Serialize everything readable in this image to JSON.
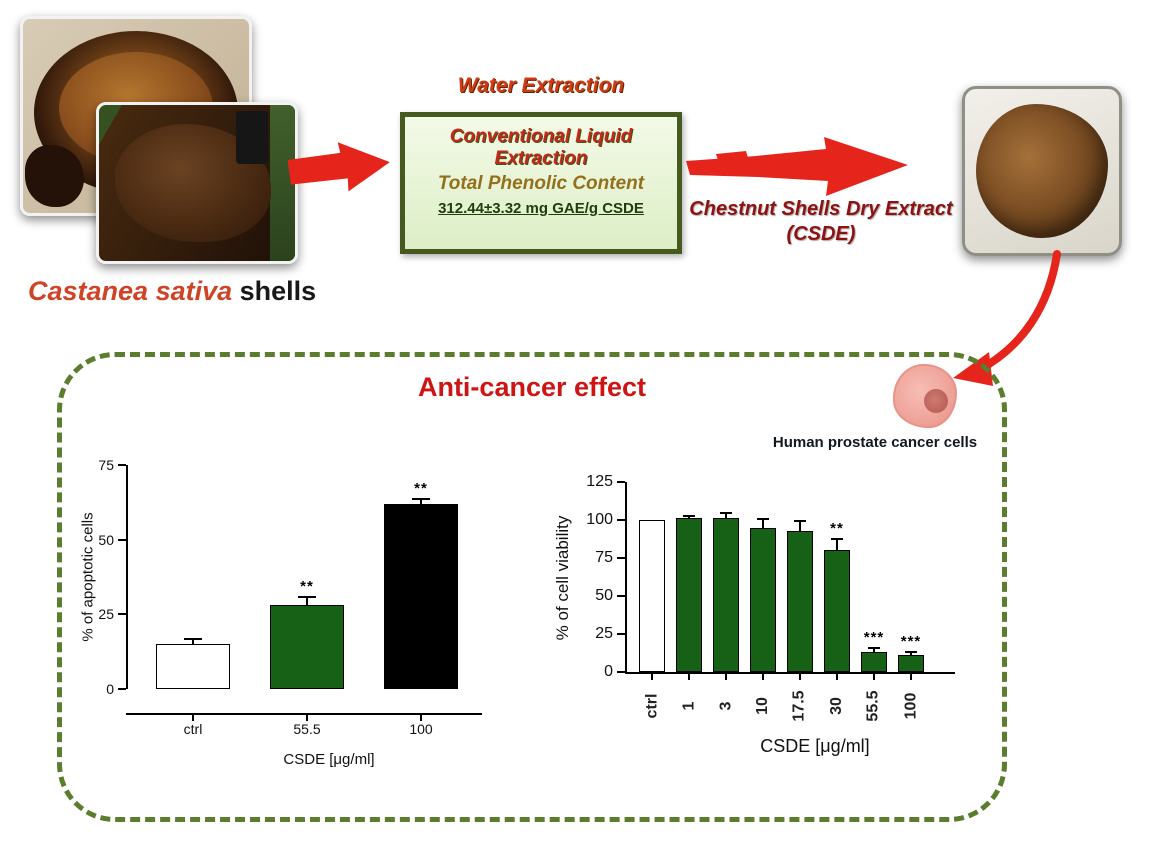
{
  "flow": {
    "species_name": "Castanea sativa",
    "species_suffix": " shells",
    "water_extraction_label": "Water Extraction",
    "extraction_box": {
      "title": "Conventional Liquid Extraction",
      "subtitle": "Total Phenolic Content",
      "value": "312.44±3.32 mg GAE/g CSDE"
    },
    "extract_label": "Chestnut Shells Dry Extract",
    "extract_abbrev": "(CSDE)"
  },
  "panel": {
    "title": "Anti-cancer effect",
    "cells_label": "Human prostate cancer cells"
  },
  "colors": {
    "accent_red": "#e5251b",
    "dark_red": "#8f1111",
    "panel_green": "#5b7d2e",
    "box_green": "#46591f",
    "bar_green": "#176117",
    "bar_black": "#000000",
    "bar_white": "#ffffff",
    "cell_pink": "#efa49a"
  },
  "chart_data": [
    {
      "type": "bar",
      "ylabel": "% of apoptotic cells",
      "xlabel": "CSDE [μg/ml]",
      "ylim": [
        0,
        75
      ],
      "yticks": [
        0,
        25,
        50,
        75
      ],
      "categories": [
        "ctrl",
        "55.5",
        "100"
      ],
      "values": [
        15,
        28,
        62
      ],
      "errors": [
        1.3,
        2.5,
        1.2
      ],
      "annotations": [
        "",
        "**",
        "**"
      ],
      "bar_colors": [
        "#ffffff",
        "#176117",
        "#000000"
      ],
      "grid": false
    },
    {
      "type": "bar",
      "ylabel": "% of cell viability",
      "xlabel": "CSDE [μg/ml]",
      "ylim": [
        0,
        125
      ],
      "yticks": [
        0,
        25,
        50,
        75,
        100,
        125
      ],
      "categories": [
        "ctrl",
        "1",
        "3",
        "10",
        "17.5",
        "30",
        "55.5",
        "100"
      ],
      "values": [
        100,
        101,
        101,
        95,
        93,
        80,
        13,
        11
      ],
      "errors": [
        0,
        1,
        3,
        5,
        6,
        7,
        2,
        1.5
      ],
      "annotations": [
        "",
        "",
        "",
        "",
        "",
        "**",
        "***",
        "***"
      ],
      "bar_colors": [
        "#ffffff",
        "#176117",
        "#176117",
        "#176117",
        "#176117",
        "#176117",
        "#176117",
        "#176117"
      ],
      "grid": false
    }
  ]
}
